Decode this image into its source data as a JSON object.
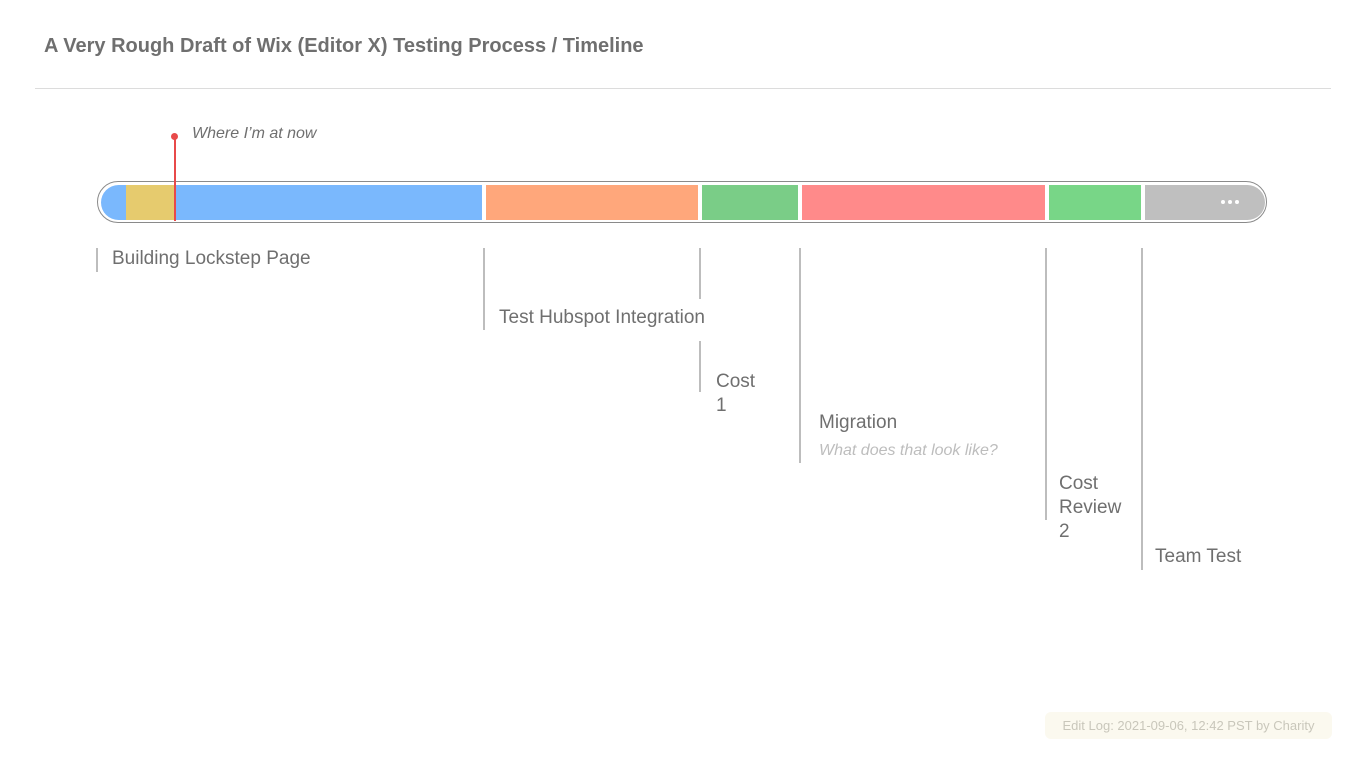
{
  "header": {
    "title": "A Very Rough Draft of Wix (Editor X) Testing Process / Timeline"
  },
  "marker": {
    "label": "Where I’m at now",
    "color": "#e84a4a"
  },
  "timeline": {
    "colors": {
      "blue": "#7ab8fd",
      "yellow": "#e6cb6e",
      "orange": "#ffa77b",
      "green": "#7acd87",
      "red": "#ff8a8a",
      "green2": "#78d687",
      "gray": "#bfbfbf"
    },
    "more_icon": "ellipsis-icon",
    "phases": [
      {
        "label": "Building Lockstep Page"
      },
      {
        "label": "Test Hubspot Integration"
      },
      {
        "label_lines": [
          "Cost",
          "1"
        ]
      },
      {
        "label": "Migration",
        "note": "What does that look like?"
      },
      {
        "label_lines": [
          "Cost",
          "Review",
          "2"
        ]
      },
      {
        "label": "Team Test"
      }
    ]
  },
  "footer": {
    "edit_log": "Edit Log: 2021-09-06, 12:42 PST by Charity"
  }
}
